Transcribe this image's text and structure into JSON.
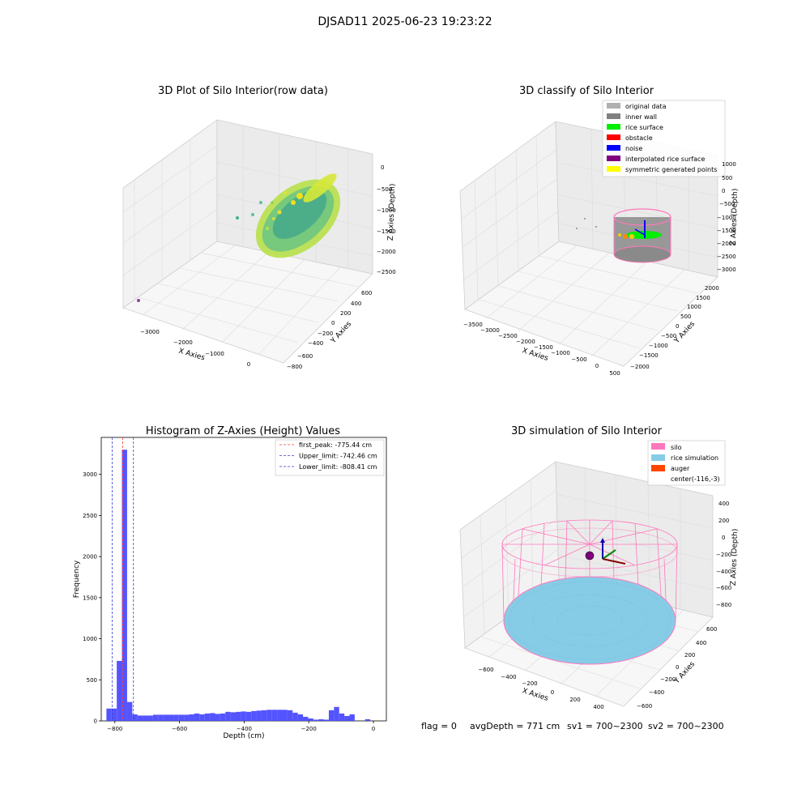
{
  "suptitle": "DJSAD11 2025-06-23 19:23:22",
  "colors": {
    "hist_bar": "#4b4bff",
    "peak_line": "#ff3b3b",
    "limit_line": "#3b3bcc",
    "silo": "#ff77bb",
    "rice_sim": "#87cce6",
    "auger": "#ff4500",
    "rice_surface": "#00ee00",
    "inner_wall": "#808080",
    "noise": "#0000ff"
  },
  "panels": {
    "raw": {
      "title": "3D Plot of Silo Interior(row data)",
      "x_label": "X Axies",
      "y_label": "Y Axies",
      "z_label": "Z Axies (Depth)",
      "x_ticks": [
        "−3000",
        "−2000",
        "−1000",
        "0"
      ],
      "y_ticks": [
        "600",
        "400",
        "200",
        "0",
        "−200",
        "−400",
        "−600",
        "−800"
      ],
      "z_ticks": [
        "0",
        "−500",
        "−1000",
        "−1500",
        "−2000",
        "−2500"
      ]
    },
    "classify": {
      "title": "3D classify of Silo Interior",
      "x_label": "X Axies",
      "y_label": "Y Axies",
      "z_label": "Z Axies (Depth)",
      "x_ticks": [
        "−3500",
        "−3000",
        "−2500",
        "−2000",
        "−1500",
        "−1000",
        "−500",
        "0",
        "500"
      ],
      "y_ticks": [
        "2000",
        "1500",
        "1000",
        "500",
        "0",
        "−500",
        "−1000",
        "−1500",
        "−2000"
      ],
      "z_ticks": [
        "1000",
        "500",
        "0",
        "−500",
        "−1000",
        "−1500",
        "−2000",
        "−2500",
        "−3000"
      ],
      "legend": [
        {
          "label": "original data",
          "color": "#b0b0b0"
        },
        {
          "label": "inner wall",
          "color": "#808080"
        },
        {
          "label": "rice surface",
          "color": "#00ee00"
        },
        {
          "label": "obstacle",
          "color": "#ff0000"
        },
        {
          "label": "noise",
          "color": "#0000ff"
        },
        {
          "label": "interpolated rice surface",
          "color": "#800080"
        },
        {
          "label": "symmetric generated points",
          "color": "#ffff00"
        }
      ]
    },
    "sim": {
      "title": "3D simulation of Silo Interior",
      "x_label": "X Axies",
      "y_label": "Y Axies",
      "z_label": "Z Axies (Depth)",
      "x_ticks": [
        "−600",
        "−400",
        "−200",
        "0",
        "200",
        "400"
      ],
      "y_ticks": [
        "600",
        "400",
        "200",
        "0",
        "−200",
        "−400",
        "−600"
      ],
      "z_ticks": [
        "400",
        "200",
        "0",
        "−200",
        "−400",
        "−600",
        "−800"
      ],
      "legend": [
        {
          "label": "silo",
          "color": "#ff77bb"
        },
        {
          "label": "rice simulation",
          "color": "#87cce6"
        },
        {
          "label": "auger",
          "color": "#ff4500"
        },
        {
          "label": "center(-116,-3)",
          "color": ""
        }
      ]
    }
  },
  "status": {
    "flag": "flag = 0",
    "avg_depth": "avgDepth = 771 cm",
    "sv1": "sv1 = 700~2300",
    "sv2": "sv2 = 700~2300"
  },
  "chart_data": {
    "type": "bar",
    "title": "Histogram of Z-Axies (Height) Values",
    "xlabel": "Depth (cm)",
    "ylabel": "Frequency",
    "xlim": [
      -842,
      40
    ],
    "ylim": [
      0,
      3450
    ],
    "x_ticks": [
      -800,
      -600,
      -400,
      -200,
      0
    ],
    "y_ticks": [
      0,
      500,
      1000,
      1500,
      2000,
      2500,
      3000
    ],
    "bin_width": 16,
    "bins": [
      {
        "x0": -826,
        "x1": -810,
        "count": 150
      },
      {
        "x0": -810,
        "x1": -794,
        "count": 150
      },
      {
        "x0": -794,
        "x1": -778,
        "count": 730
      },
      {
        "x0": -778,
        "x1": -762,
        "count": 3300
      },
      {
        "x0": -762,
        "x1": -746,
        "count": 230
      },
      {
        "x0": -746,
        "x1": -730,
        "count": 80
      },
      {
        "x0": -730,
        "x1": -714,
        "count": 65
      },
      {
        "x0": -714,
        "x1": -698,
        "count": 65
      },
      {
        "x0": -698,
        "x1": -682,
        "count": 65
      },
      {
        "x0": -682,
        "x1": -666,
        "count": 75
      },
      {
        "x0": -666,
        "x1": -650,
        "count": 75
      },
      {
        "x0": -650,
        "x1": -634,
        "count": 75
      },
      {
        "x0": -634,
        "x1": -618,
        "count": 75
      },
      {
        "x0": -618,
        "x1": -602,
        "count": 75
      },
      {
        "x0": -602,
        "x1": -586,
        "count": 75
      },
      {
        "x0": -586,
        "x1": -570,
        "count": 75
      },
      {
        "x0": -570,
        "x1": -554,
        "count": 80
      },
      {
        "x0": -554,
        "x1": -538,
        "count": 90
      },
      {
        "x0": -538,
        "x1": -522,
        "count": 80
      },
      {
        "x0": -522,
        "x1": -506,
        "count": 90
      },
      {
        "x0": -506,
        "x1": -490,
        "count": 95
      },
      {
        "x0": -490,
        "x1": -474,
        "count": 85
      },
      {
        "x0": -474,
        "x1": -458,
        "count": 90
      },
      {
        "x0": -458,
        "x1": -442,
        "count": 110
      },
      {
        "x0": -442,
        "x1": -426,
        "count": 105
      },
      {
        "x0": -426,
        "x1": -410,
        "count": 110
      },
      {
        "x0": -410,
        "x1": -394,
        "count": 115
      },
      {
        "x0": -394,
        "x1": -378,
        "count": 110
      },
      {
        "x0": -378,
        "x1": -362,
        "count": 120
      },
      {
        "x0": -362,
        "x1": -346,
        "count": 125
      },
      {
        "x0": -346,
        "x1": -330,
        "count": 130
      },
      {
        "x0": -330,
        "x1": -314,
        "count": 135
      },
      {
        "x0": -314,
        "x1": -298,
        "count": 135
      },
      {
        "x0": -298,
        "x1": -282,
        "count": 135
      },
      {
        "x0": -282,
        "x1": -266,
        "count": 135
      },
      {
        "x0": -266,
        "x1": -250,
        "count": 130
      },
      {
        "x0": -250,
        "x1": -234,
        "count": 100
      },
      {
        "x0": -234,
        "x1": -218,
        "count": 80
      },
      {
        "x0": -218,
        "x1": -202,
        "count": 50
      },
      {
        "x0": -202,
        "x1": -186,
        "count": 30
      },
      {
        "x0": -186,
        "x1": -170,
        "count": 15
      },
      {
        "x0": -170,
        "x1": -154,
        "count": 20
      },
      {
        "x0": -154,
        "x1": -138,
        "count": 15
      },
      {
        "x0": -138,
        "x1": -122,
        "count": 130
      },
      {
        "x0": -122,
        "x1": -106,
        "count": 170
      },
      {
        "x0": -106,
        "x1": -90,
        "count": 90
      },
      {
        "x0": -90,
        "x1": -74,
        "count": 60
      },
      {
        "x0": -74,
        "x1": -58,
        "count": 80
      },
      {
        "x0": -26,
        "x1": -10,
        "count": 20
      }
    ],
    "lines": [
      {
        "label": "first_peak: -775.44 cm",
        "x": -775.44,
        "color": "#ff3b3b"
      },
      {
        "label": "Upper_limit: -742.46 cm",
        "x": -742.46,
        "color": "#3b3bcc"
      },
      {
        "label": "Lower_limit: -808.41 cm",
        "x": -808.41,
        "color": "#3b3bcc"
      }
    ]
  }
}
